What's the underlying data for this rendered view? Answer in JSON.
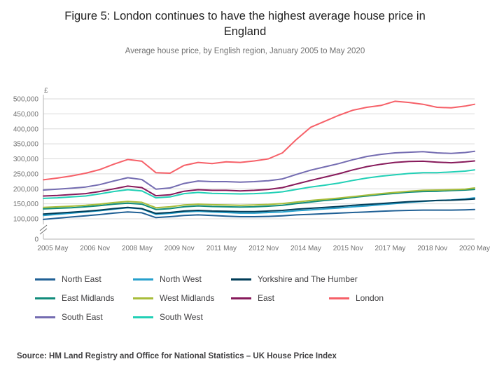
{
  "title": "Figure 5: London continues to have the highest average house price in England",
  "subtitle": "Average house price, by English region, January 2005 to May 2020",
  "source": "Source: HM Land Registry and Office for National Statistics – UK House Price Index",
  "legend": {
    "rows": [
      [
        0,
        1,
        2
      ],
      [
        3,
        4,
        5,
        6
      ],
      [
        7,
        8
      ]
    ]
  },
  "chart_data": {
    "type": "line",
    "title": "Figure 5: London continues to have the highest average house price in England",
    "subtitle": "Average house price, by English region, January 2005 to May 2020",
    "xlabel": "",
    "ylabel": "£",
    "y_unit": "£",
    "grid": true,
    "legend_position": "bottom",
    "axis_break_between_0_and_100000": true,
    "x_domain_months": [
      0,
      184
    ],
    "x_months": [
      0,
      6,
      12,
      18,
      24,
      30,
      36,
      42,
      48,
      54,
      60,
      66,
      72,
      78,
      84,
      90,
      96,
      102,
      108,
      114,
      120,
      126,
      132,
      138,
      144,
      150,
      156,
      162,
      168,
      174,
      180,
      184
    ],
    "x_tick_months": [
      4,
      22,
      40,
      58,
      76,
      94,
      112,
      130,
      148,
      166,
      184
    ],
    "x_tick_labels": [
      "2005 May",
      "2006 Nov",
      "2008 May",
      "2009 Nov",
      "2011 May",
      "2012 Nov",
      "2014 May",
      "2015 Nov",
      "2017 May",
      "2018 Nov",
      "2020 May"
    ],
    "y_ticks": [
      0,
      100000,
      150000,
      200000,
      250000,
      300000,
      350000,
      400000,
      450000,
      500000
    ],
    "y_range_plot": [
      100000,
      500000
    ],
    "series": [
      {
        "name": "North East",
        "color": "#206095",
        "values": [
          98000,
          102000,
          106000,
          110000,
          114000,
          119000,
          123000,
          120000,
          104000,
          107000,
          111000,
          113000,
          111000,
          109000,
          107000,
          107000,
          108000,
          110000,
          113000,
          115000,
          117000,
          119000,
          121000,
          123000,
          125000,
          127000,
          128000,
          129000,
          129000,
          129000,
          130000,
          131000
        ]
      },
      {
        "name": "North West",
        "color": "#27a0cc",
        "values": [
          111000,
          115000,
          119000,
          123000,
          127000,
          132000,
          137000,
          133000,
          115000,
          118000,
          123000,
          125000,
          123000,
          121000,
          119000,
          119000,
          121000,
          123000,
          127000,
          130000,
          133000,
          136000,
          140000,
          143000,
          147000,
          151000,
          155000,
          158000,
          161000,
          163000,
          166000,
          170000
        ]
      },
      {
        "name": "Yorkshire and The Humber",
        "color": "#003c57",
        "values": [
          116000,
          119000,
          122000,
          125000,
          129000,
          134000,
          138000,
          134000,
          118000,
          121000,
          126000,
          128000,
          126000,
          125000,
          124000,
          124000,
          126000,
          128000,
          132000,
          135000,
          138000,
          141000,
          145000,
          148000,
          151000,
          154000,
          157000,
          159000,
          161000,
          162000,
          164000,
          166000
        ]
      },
      {
        "name": "East Midlands",
        "color": "#118c7b",
        "values": [
          133000,
          135000,
          137000,
          140000,
          144000,
          149000,
          152000,
          149000,
          131000,
          134000,
          140000,
          143000,
          141000,
          140000,
          139000,
          140000,
          142000,
          145000,
          151000,
          156000,
          161000,
          165000,
          171000,
          176000,
          181000,
          185000,
          189000,
          191000,
          192000,
          194000,
          196000,
          198000
        ]
      },
      {
        "name": "West Midlands",
        "color": "#a8bd3a",
        "values": [
          138000,
          140000,
          142000,
          145000,
          149000,
          154000,
          158000,
          155000,
          137000,
          140000,
          146000,
          149000,
          147000,
          146000,
          145000,
          146000,
          148000,
          151000,
          156000,
          161000,
          165000,
          169000,
          174000,
          179000,
          184000,
          188000,
          192000,
          195000,
          196000,
          197000,
          199000,
          203000
        ]
      },
      {
        "name": "East",
        "color": "#871a5b",
        "values": [
          176000,
          178000,
          181000,
          184000,
          191000,
          200000,
          209000,
          204000,
          177000,
          180000,
          192000,
          197000,
          195000,
          195000,
          193000,
          195000,
          198000,
          204000,
          216000,
          228000,
          239000,
          250000,
          263000,
          274000,
          282000,
          288000,
          291000,
          292000,
          289000,
          287000,
          290000,
          293000
        ]
      },
      {
        "name": "London",
        "color": "#f66068",
        "values": [
          230000,
          236000,
          243000,
          252000,
          264000,
          282000,
          298000,
          292000,
          254000,
          252000,
          278000,
          288000,
          284000,
          290000,
          288000,
          293000,
          300000,
          320000,
          365000,
          405000,
          425000,
          445000,
          462000,
          472000,
          478000,
          492000,
          488000,
          482000,
          472000,
          470000,
          476000,
          482000
        ]
      },
      {
        "name": "South East",
        "color": "#746cb1",
        "values": [
          196000,
          199000,
          202000,
          206000,
          214000,
          226000,
          237000,
          231000,
          199000,
          203000,
          218000,
          226000,
          224000,
          224000,
          222000,
          224000,
          227000,
          233000,
          248000,
          262000,
          273000,
          284000,
          297000,
          308000,
          315000,
          320000,
          322000,
          324000,
          320000,
          318000,
          321000,
          325000
        ]
      },
      {
        "name": "South West",
        "color": "#22d0b6",
        "values": [
          168000,
          170000,
          173000,
          176000,
          183000,
          191000,
          197000,
          193000,
          170000,
          173000,
          184000,
          188000,
          185000,
          184000,
          183000,
          184000,
          186000,
          190000,
          198000,
          206000,
          212000,
          219000,
          228000,
          236000,
          242000,
          247000,
          251000,
          254000,
          254000,
          256000,
          259000,
          263000
        ]
      }
    ]
  }
}
